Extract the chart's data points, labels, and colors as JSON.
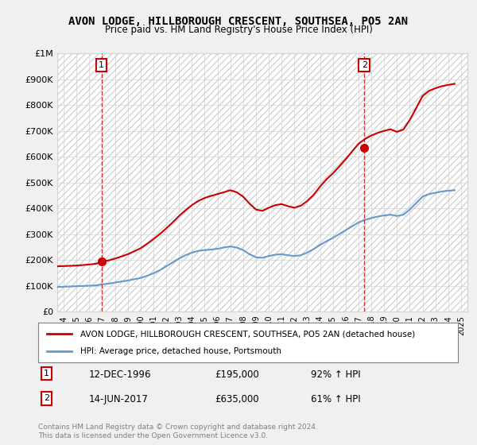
{
  "title": "AVON LODGE, HILLBOROUGH CRESCENT, SOUTHSEA, PO5 2AN",
  "subtitle": "Price paid vs. HM Land Registry's House Price Index (HPI)",
  "legend_label_red": "AVON LODGE, HILLBOROUGH CRESCENT, SOUTHSEA, PO5 2AN (detached house)",
  "legend_label_blue": "HPI: Average price, detached house, Portsmouth",
  "sale1_label": "1",
  "sale2_label": "2",
  "sale1_date": "12-DEC-1996",
  "sale1_price": "£195,000",
  "sale1_hpi": "92% ↑ HPI",
  "sale2_date": "14-JUN-2017",
  "sale2_price": "£635,000",
  "sale2_hpi": "61% ↑ HPI",
  "footer": "Contains HM Land Registry data © Crown copyright and database right 2024.\nThis data is licensed under the Open Government Licence v3.0.",
  "background_color": "#f0f0f0",
  "plot_bg_color": "#ffffff",
  "red_color": "#cc0000",
  "blue_color": "#6699cc",
  "sale1_x": 1996.95,
  "sale1_y": 195000,
  "sale2_x": 2017.45,
  "sale2_y": 635000,
  "ylim": [
    0,
    1000000
  ],
  "xlim": [
    1993.5,
    2025.5
  ],
  "hpi_x": [
    1993.5,
    1994,
    1994.5,
    1995,
    1995.5,
    1996,
    1996.5,
    1997,
    1997.5,
    1998,
    1998.5,
    1999,
    1999.5,
    2000,
    2000.5,
    2001,
    2001.5,
    2002,
    2002.5,
    2003,
    2003.5,
    2004,
    2004.5,
    2005,
    2005.5,
    2006,
    2006.5,
    2007,
    2007.5,
    2008,
    2008.5,
    2009,
    2009.5,
    2010,
    2010.5,
    2011,
    2011.5,
    2012,
    2012.5,
    2013,
    2013.5,
    2014,
    2014.5,
    2015,
    2015.5,
    2016,
    2016.5,
    2017,
    2017.5,
    2018,
    2018.5,
    2019,
    2019.5,
    2020,
    2020.5,
    2021,
    2021.5,
    2022,
    2022.5,
    2023,
    2023.5,
    2024,
    2024.5
  ],
  "hpi_y": [
    95000,
    96000,
    97000,
    98000,
    99000,
    100000,
    101000,
    105000,
    108000,
    112000,
    116000,
    120000,
    125000,
    130000,
    138000,
    148000,
    160000,
    175000,
    190000,
    205000,
    218000,
    228000,
    235000,
    238000,
    240000,
    243000,
    248000,
    252000,
    248000,
    238000,
    222000,
    210000,
    208000,
    215000,
    220000,
    222000,
    218000,
    215000,
    218000,
    228000,
    242000,
    258000,
    272000,
    285000,
    300000,
    315000,
    330000,
    345000,
    355000,
    362000,
    368000,
    372000,
    375000,
    370000,
    375000,
    395000,
    420000,
    445000,
    455000,
    460000,
    465000,
    468000,
    470000
  ],
  "red_x": [
    1993.5,
    1994,
    1994.5,
    1995,
    1995.5,
    1996,
    1996.5,
    1997,
    1997.5,
    1998,
    1998.5,
    1999,
    1999.5,
    2000,
    2000.5,
    2001,
    2001.5,
    2002,
    2002.5,
    2003,
    2003.5,
    2004,
    2004.5,
    2005,
    2005.5,
    2006,
    2006.5,
    2007,
    2007.5,
    2008,
    2008.5,
    2009,
    2009.5,
    2010,
    2010.5,
    2011,
    2011.5,
    2012,
    2012.5,
    2013,
    2013.5,
    2014,
    2014.5,
    2015,
    2015.5,
    2016,
    2016.5,
    2017,
    2017.5,
    2018,
    2018.5,
    2019,
    2019.5,
    2020,
    2020.5,
    2021,
    2021.5,
    2022,
    2022.5,
    2023,
    2023.5,
    2024,
    2024.5
  ],
  "red_y": [
    175000,
    176000,
    177000,
    178000,
    180000,
    182000,
    185000,
    192000,
    198000,
    205000,
    213000,
    222000,
    233000,
    245000,
    262000,
    280000,
    300000,
    322000,
    345000,
    370000,
    392000,
    412000,
    428000,
    440000,
    448000,
    455000,
    462000,
    470000,
    462000,
    445000,
    418000,
    395000,
    390000,
    402000,
    412000,
    416000,
    408000,
    402000,
    410000,
    428000,
    452000,
    484000,
    512000,
    535000,
    562000,
    590000,
    620000,
    650000,
    668000,
    682000,
    692000,
    700000,
    706000,
    696000,
    705000,
    742000,
    788000,
    835000,
    855000,
    865000,
    873000,
    878000,
    882000
  ]
}
